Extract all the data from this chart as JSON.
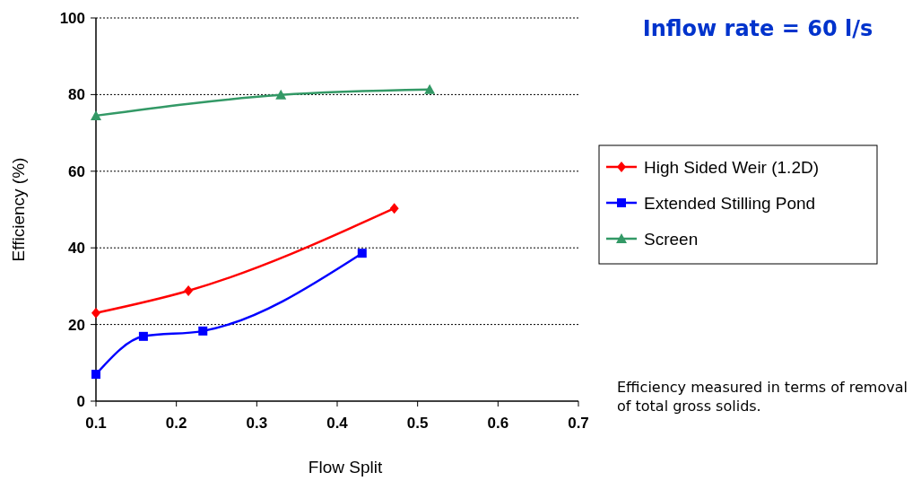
{
  "chart_data": {
    "type": "line",
    "xlabel": "Flow Split",
    "ylabel": "Efficiency (%)",
    "xlim": [
      0.1,
      0.7
    ],
    "xticks": [
      0.1,
      0.2,
      0.3,
      0.4,
      0.5,
      0.6,
      0.7
    ],
    "ylim": [
      0,
      100
    ],
    "yticks": [
      0,
      20,
      40,
      60,
      80,
      100
    ],
    "grid": "y",
    "legend": "right",
    "annotations": [
      "Inflow rate = 60 l/s",
      "Efficiency measured in terms of removal of total gross solids."
    ],
    "series": [
      {
        "name": "High Sided Weir (1.2D)",
        "color": "#ff0000",
        "marker": "diamond",
        "x": [
          0.1,
          0.215,
          0.471
        ],
        "values": [
          23,
          28.8,
          50.3
        ]
      },
      {
        "name": "Extended Stilling Pond",
        "color": "#0000ff",
        "marker": "square",
        "x": [
          0.1,
          0.159,
          0.233,
          0.431
        ],
        "values": [
          7,
          16.9,
          18.3,
          38.6
        ]
      },
      {
        "name": "Screen",
        "color": "#339966",
        "marker": "triangle",
        "x": [
          0.1,
          0.33,
          0.515
        ],
        "values": [
          74.5,
          79.9,
          81.3
        ]
      }
    ]
  }
}
